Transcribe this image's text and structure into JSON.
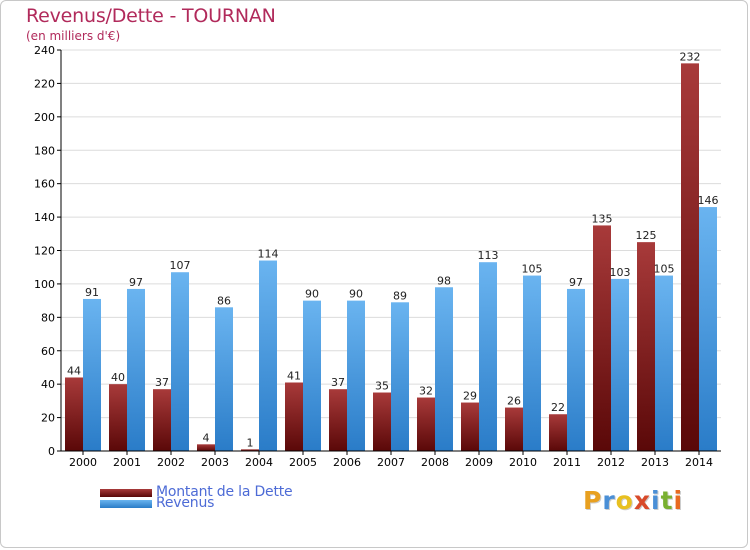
{
  "header": {
    "title": "Revenus/Dette - TOURNAN",
    "subtitle": "(en milliers d'€)"
  },
  "legend": {
    "debt_label": "Montant de la Dette",
    "revenue_label": "Revenus"
  },
  "logo": {
    "letters": [
      "P",
      "r",
      "o",
      "x",
      "i",
      "t",
      "i"
    ],
    "colors": [
      "#e8a020",
      "#4a8fd6",
      "#e8c020",
      "#d84a2a",
      "#4a8fd6",
      "#7ab030",
      "#e86a20"
    ]
  },
  "colors": {
    "debt": "#7a1515",
    "debt_light": "#a83a3a",
    "revenue": "#3a8fe0",
    "revenue_light": "#6ab4f0",
    "title": "#b12a5b"
  },
  "chart_data": {
    "type": "bar",
    "categories": [
      "2000",
      "2001",
      "2002",
      "2003",
      "2004",
      "2005",
      "2006",
      "2007",
      "2008",
      "2009",
      "2010",
      "2011",
      "2012",
      "2013",
      "2014"
    ],
    "series": [
      {
        "name": "Montant de la Dette",
        "values": [
          44,
          40,
          37,
          4,
          1,
          41,
          37,
          35,
          32,
          29,
          26,
          22,
          135,
          125,
          232
        ]
      },
      {
        "name": "Revenus",
        "values": [
          91,
          97,
          107,
          86,
          114,
          90,
          90,
          89,
          98,
          113,
          105,
          97,
          103,
          105,
          146
        ]
      }
    ],
    "ylim": [
      0,
      240
    ],
    "yticks": [
      0,
      20,
      40,
      60,
      80,
      100,
      120,
      140,
      160,
      180,
      200,
      220,
      240
    ],
    "grid": true,
    "legend_position": "bottom-left"
  }
}
